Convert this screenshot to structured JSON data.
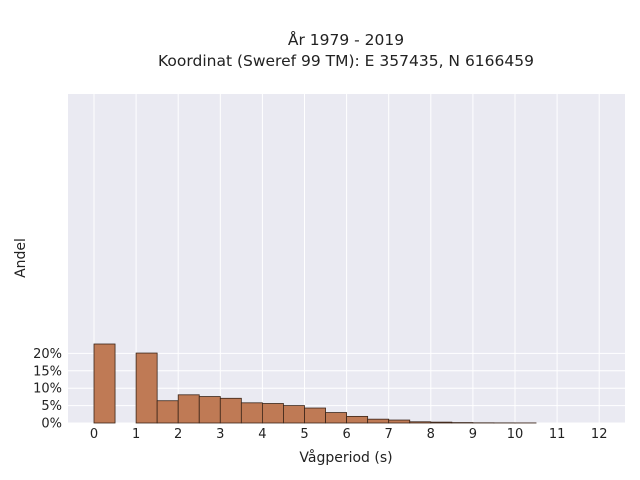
{
  "chart_data": {
    "type": "bar",
    "title": "År 1979 - 2019",
    "subtitle": "Koordinat (Sweref 99 TM): E 357435, N 6166459",
    "xlabel": "Vågperiod (s)",
    "ylabel": "Andel",
    "x_ticks": [
      "0",
      "1",
      "2",
      "3",
      "4",
      "5",
      "6",
      "7",
      "8",
      "9",
      "10",
      "11",
      "12"
    ],
    "y_ticks": [
      "0%",
      "5%",
      "10%",
      "15%",
      "20%"
    ],
    "xlim": [
      -0.5,
      12.5
    ],
    "ylim": [
      0,
      24
    ],
    "grid": true,
    "bar_width": 0.5,
    "bar_color": "#bf7a55",
    "edge_color": "#3a2418",
    "plot_background": "#eaeaf2",
    "bins": [
      {
        "x": 0.25,
        "value": 22.7
      },
      {
        "x": 1.25,
        "value": 20.1
      },
      {
        "x": 1.75,
        "value": 6.4
      },
      {
        "x": 2.25,
        "value": 8.1
      },
      {
        "x": 2.75,
        "value": 7.6
      },
      {
        "x": 3.25,
        "value": 7.1
      },
      {
        "x": 3.75,
        "value": 5.8
      },
      {
        "x": 4.25,
        "value": 5.6
      },
      {
        "x": 4.75,
        "value": 5.0
      },
      {
        "x": 5.25,
        "value": 4.3
      },
      {
        "x": 5.75,
        "value": 3.0
      },
      {
        "x": 6.25,
        "value": 1.9
      },
      {
        "x": 6.75,
        "value": 1.1
      },
      {
        "x": 7.25,
        "value": 0.85
      },
      {
        "x": 7.75,
        "value": 0.35
      },
      {
        "x": 8.25,
        "value": 0.25
      },
      {
        "x": 8.75,
        "value": 0.12
      },
      {
        "x": 9.25,
        "value": 0.05
      },
      {
        "x": 9.75,
        "value": 0.03
      },
      {
        "x": 10.25,
        "value": 0.02
      }
    ]
  }
}
